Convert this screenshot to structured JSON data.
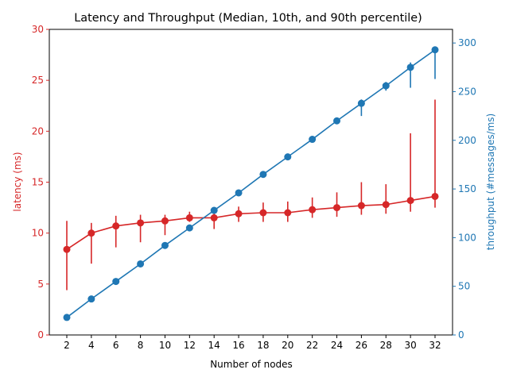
{
  "chart_data": {
    "type": "line",
    "title": "Latency and Throughput (Median, 10th, and 90th percentile)",
    "xlabel": "Number of nodes",
    "ylabel_left": "latency (ms)",
    "ylabel_right": "throughput (#messages/ms)",
    "categories": [
      2,
      4,
      6,
      8,
      10,
      12,
      14,
      16,
      18,
      20,
      22,
      24,
      26,
      28,
      30,
      32
    ],
    "x_ticks": [
      "2",
      "4",
      "6",
      "8",
      "10",
      "12",
      "14",
      "16",
      "18",
      "20",
      "22",
      "24",
      "26",
      "28",
      "30",
      "32"
    ],
    "left_ticks": [
      "0",
      "5",
      "10",
      "15",
      "20",
      "25",
      "30"
    ],
    "right_ticks": [
      "0",
      "50",
      "100",
      "150",
      "200",
      "250",
      "300"
    ],
    "ylim_left": [
      0,
      30
    ],
    "ylim_right": [
      0,
      314
    ],
    "grid": false,
    "colors": {
      "latency": "#d62728",
      "throughput": "#1f77b4",
      "axis": "#000000"
    },
    "series": [
      {
        "axis": "left",
        "color": "#d62728",
        "median": [
          8.4,
          10.0,
          10.7,
          11.0,
          11.2,
          11.5,
          11.5,
          11.9,
          12.0,
          12.0,
          12.3,
          12.5,
          12.7,
          12.8,
          13.2,
          13.6
        ],
        "p10": [
          4.4,
          7.0,
          8.6,
          9.1,
          9.8,
          11.1,
          10.4,
          11.1,
          11.1,
          11.1,
          11.5,
          11.6,
          11.8,
          11.9,
          12.1,
          12.5
        ],
        "p90": [
          11.2,
          11.0,
          11.7,
          11.8,
          11.8,
          12.1,
          12.0,
          12.6,
          13.0,
          13.1,
          13.5,
          14.0,
          15.0,
          14.8,
          19.8,
          23.1
        ]
      },
      {
        "axis": "right",
        "color": "#1f77b4",
        "median": [
          18,
          37,
          55,
          73,
          92,
          110,
          128,
          146,
          165,
          183,
          201,
          220,
          238,
          256,
          275,
          293
        ],
        "p10": [
          17,
          36,
          54,
          72,
          91,
          109,
          127,
          145,
          163,
          181,
          199,
          217,
          225,
          251,
          254,
          263
        ],
        "p90": [
          19,
          38,
          56,
          74,
          93,
          111,
          129,
          147,
          167,
          185,
          204,
          223,
          242,
          260,
          280,
          296
        ]
      }
    ]
  }
}
